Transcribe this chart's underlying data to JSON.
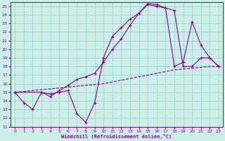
{
  "xlabel": "Windchill (Refroidissement éolien,°C)",
  "bg_color": "#cceee8",
  "line_color": "#880088",
  "grid_color": "#99cccc",
  "xlim": [
    -0.5,
    23.5
  ],
  "ylim": [
    11,
    25.5
  ],
  "yticks": [
    11,
    12,
    13,
    14,
    15,
    16,
    17,
    18,
    19,
    20,
    21,
    22,
    23,
    24,
    25
  ],
  "xticks": [
    0,
    1,
    2,
    3,
    4,
    5,
    6,
    7,
    8,
    9,
    10,
    11,
    12,
    13,
    14,
    15,
    16,
    17,
    18,
    19,
    20,
    21,
    22,
    23
  ],
  "line1_x": [
    0,
    1,
    2,
    3,
    4,
    5,
    6,
    7,
    8,
    9,
    10,
    11,
    12,
    13,
    14,
    15,
    16,
    17,
    18,
    19,
    20,
    21,
    22,
    23
  ],
  "line1_y": [
    15,
    13.8,
    13.0,
    15.0,
    14.8,
    15.0,
    15.2,
    12.5,
    11.5,
    13.8,
    19.0,
    21.5,
    22.5,
    23.5,
    24.2,
    25.2,
    25.0,
    24.8,
    18.0,
    18.5,
    23.2,
    20.5,
    19.0,
    18.0
  ],
  "line2_x": [
    0,
    3,
    4,
    5,
    6,
    7,
    8,
    9,
    10,
    11,
    12,
    13,
    14,
    15,
    16,
    17,
    18,
    19,
    20,
    21,
    22,
    23
  ],
  "line2_y": [
    15,
    15.0,
    14.5,
    15.2,
    15.8,
    16.5,
    16.8,
    17.2,
    18.5,
    20.0,
    21.2,
    22.8,
    24.2,
    25.3,
    25.2,
    24.8,
    24.5,
    18.0,
    18.0,
    19.0,
    19.0,
    18.0
  ],
  "line3_x": [
    0,
    1,
    2,
    3,
    4,
    5,
    6,
    7,
    8,
    9,
    10,
    11,
    12,
    13,
    14,
    15,
    16,
    17,
    18,
    19,
    20,
    21,
    22,
    23
  ],
  "line3_y": [
    15.0,
    15.1,
    15.2,
    15.3,
    15.4,
    15.5,
    15.6,
    15.7,
    15.8,
    15.9,
    16.0,
    16.2,
    16.4,
    16.6,
    16.8,
    17.0,
    17.2,
    17.4,
    17.6,
    17.7,
    17.8,
    17.9,
    18.0,
    18.0
  ]
}
